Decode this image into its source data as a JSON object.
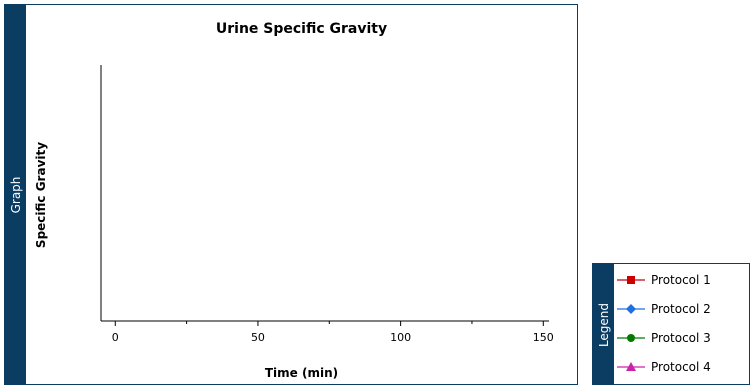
{
  "graph": {
    "tab_label": "Graph"
  },
  "legend": {
    "tab_label": "Legend",
    "items": [
      {
        "label": "Protocol 1",
        "color": "#cc0000",
        "marker": "square"
      },
      {
        "label": "Protocol 2",
        "color": "#1f6fe0",
        "marker": "diamond"
      },
      {
        "label": "Protocol 3",
        "color": "#007a00",
        "marker": "circle"
      },
      {
        "label": "Protocol 4",
        "color": "#cc22aa",
        "marker": "triangle"
      }
    ]
  },
  "chart_data": {
    "type": "line",
    "title": "Urine Specific Gravity",
    "xlabel": "Time (min)",
    "ylabel": "Specific Gravity",
    "xlim": [
      -5,
      152
    ],
    "x_ticks": [
      0,
      50,
      100,
      150
    ],
    "series": [
      {
        "name": "Protocol 1",
        "x": [],
        "y": []
      },
      {
        "name": "Protocol 2",
        "x": [],
        "y": []
      },
      {
        "name": "Protocol 3",
        "x": [],
        "y": []
      },
      {
        "name": "Protocol 4",
        "x": [],
        "y": []
      }
    ]
  }
}
